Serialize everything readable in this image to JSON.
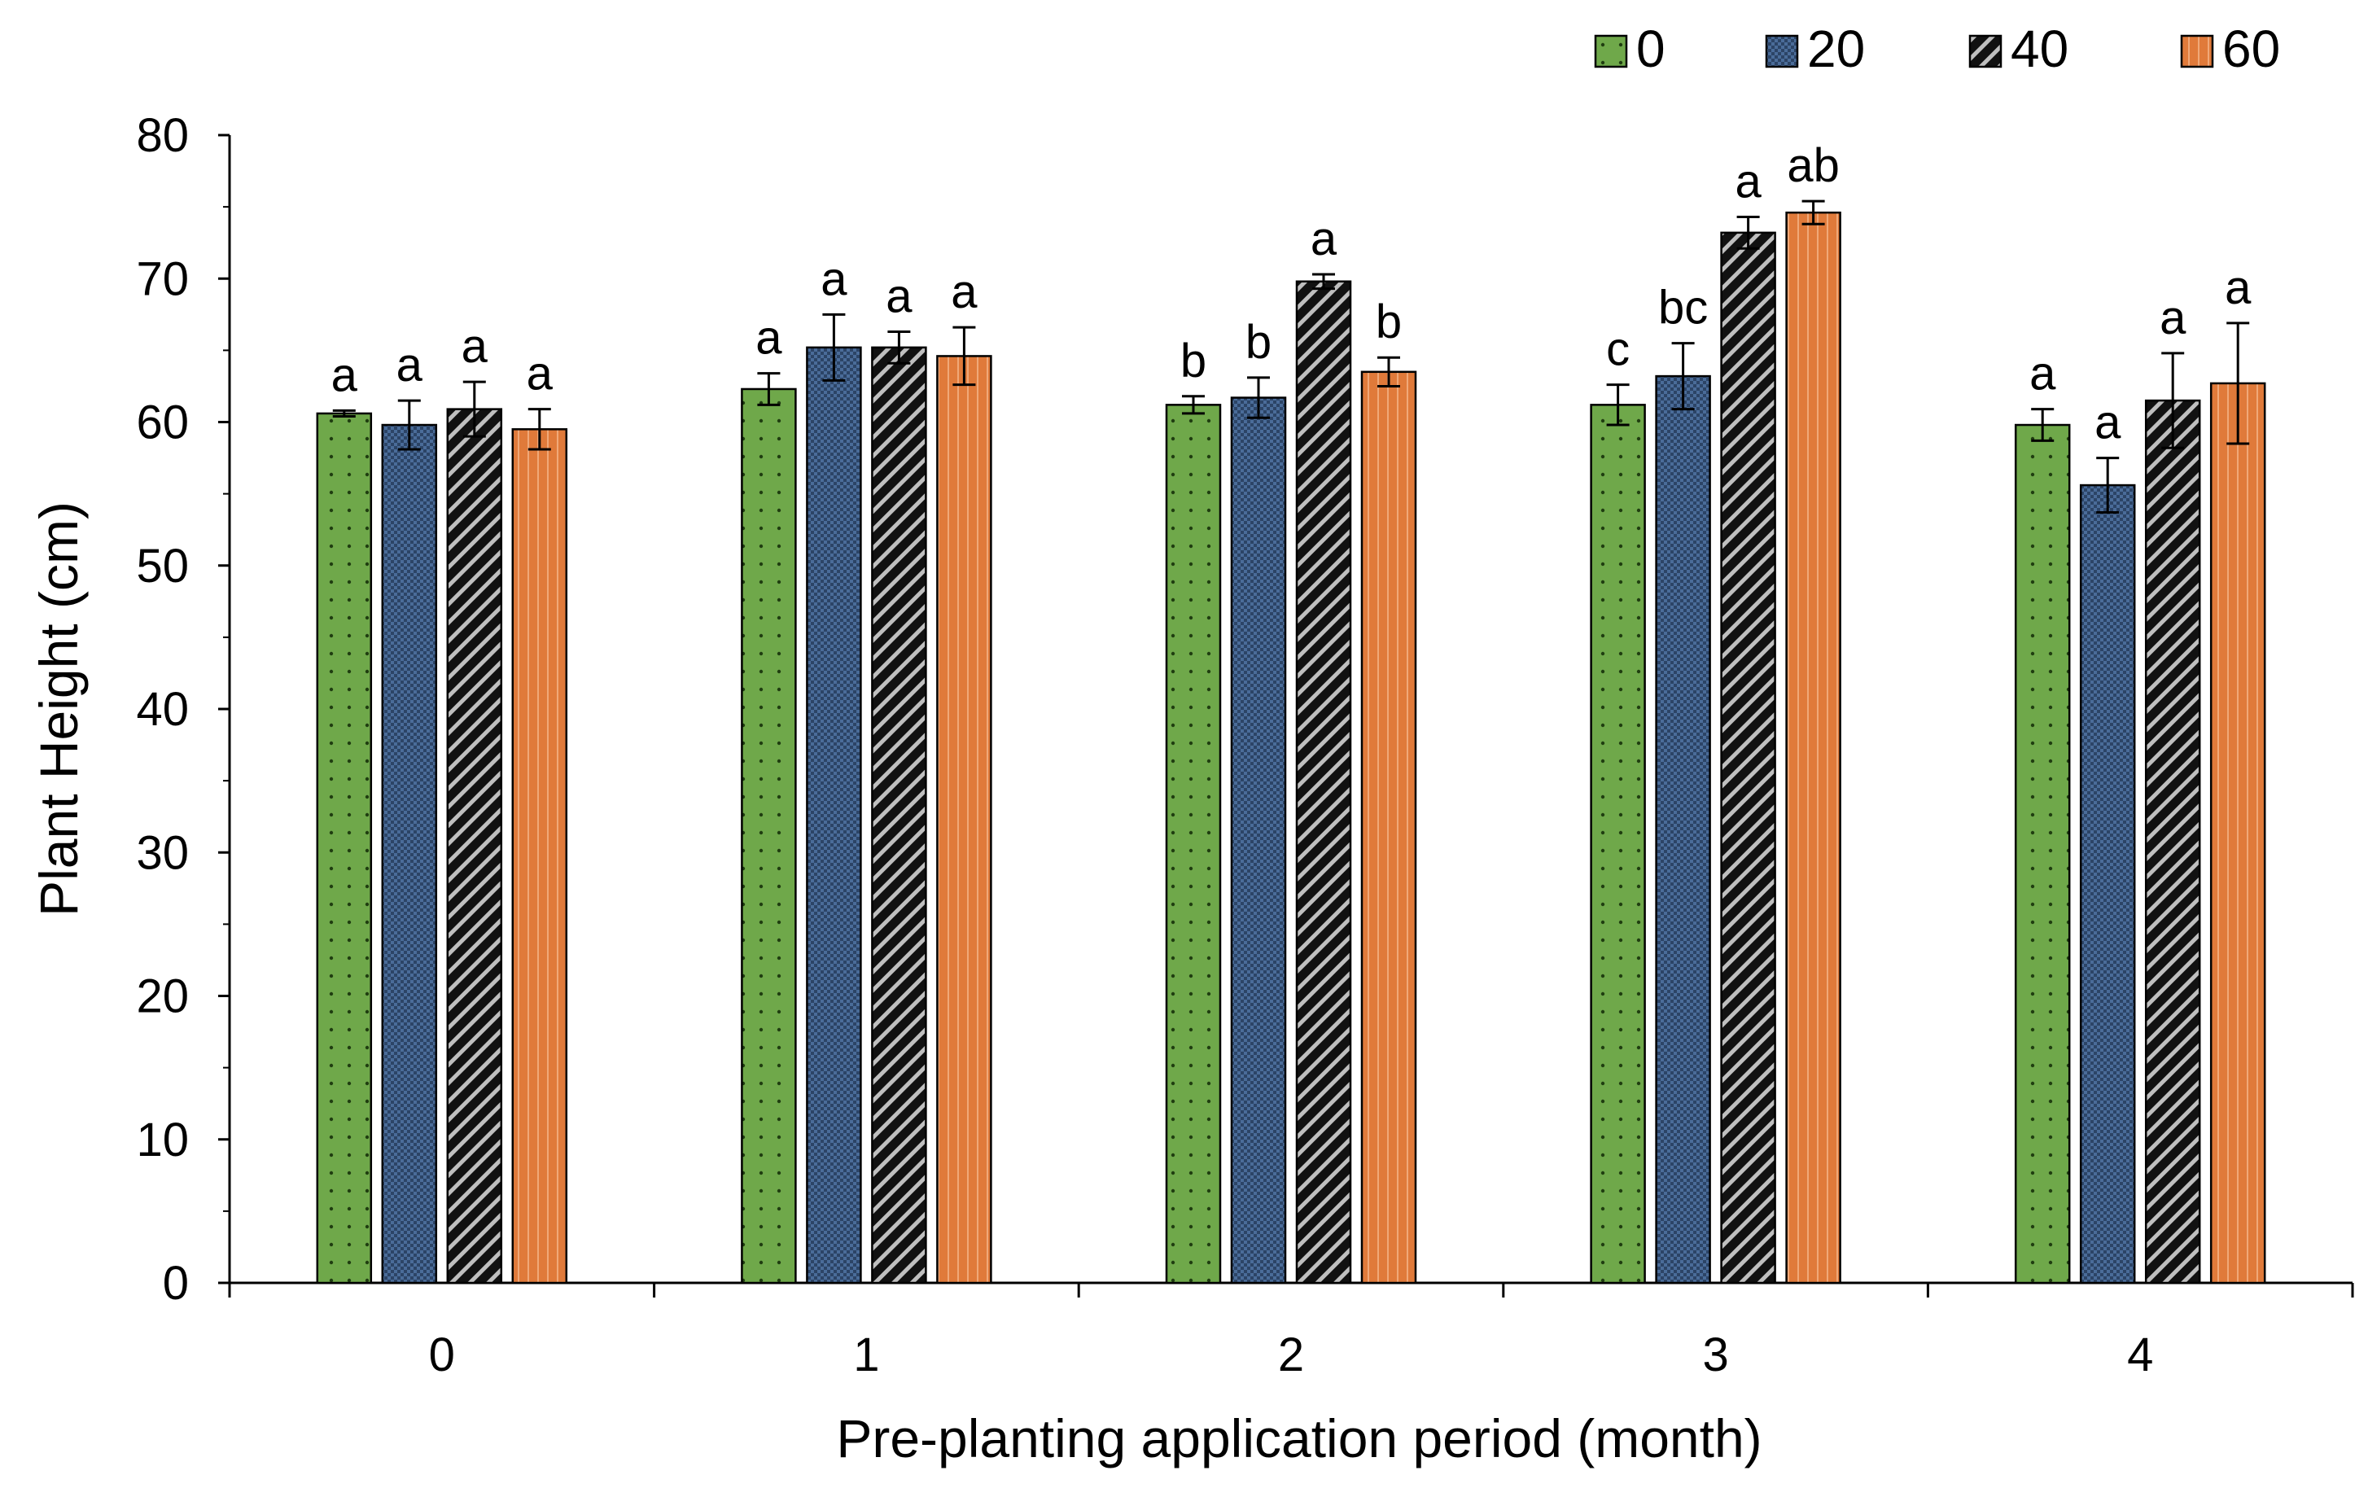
{
  "chart_data": {
    "type": "bar",
    "title": "",
    "xlabel": "Pre-planting application period (month)",
    "ylabel": "Plant Height (cm)",
    "ylim": [
      0,
      80
    ],
    "yticks": [
      0,
      10,
      20,
      30,
      40,
      50,
      60,
      70,
      80
    ],
    "categories": [
      "0",
      "1",
      "2",
      "3",
      "4"
    ],
    "legend_position": "top-right",
    "series": [
      {
        "name": "0",
        "color": "#6fa84a",
        "pattern": "dots",
        "values": [
          60.6,
          62.3,
          61.2,
          61.2,
          59.8
        ],
        "errors": [
          0.2,
          1.1,
          0.6,
          1.4,
          1.1
        ],
        "labels": [
          "a",
          "a",
          "b",
          "c",
          "a"
        ]
      },
      {
        "name": "20",
        "color": "#3f5f8a",
        "pattern": "checker",
        "values": [
          59.8,
          65.2,
          61.7,
          63.2,
          55.6
        ],
        "errors": [
          1.7,
          2.3,
          1.4,
          2.3,
          1.9
        ],
        "labels": [
          "a",
          "a",
          "b",
          "bc",
          "a"
        ]
      },
      {
        "name": "40",
        "color": "#1a1a1a",
        "pattern": "diagonal",
        "values": [
          60.9,
          65.2,
          69.8,
          73.2,
          61.5
        ],
        "errors": [
          1.9,
          1.1,
          0.5,
          1.1,
          3.3
        ],
        "labels": [
          "a",
          "a",
          "a",
          "a",
          "a"
        ]
      },
      {
        "name": "60",
        "color": "#e07a3a",
        "pattern": "vertical",
        "values": [
          59.5,
          64.6,
          63.5,
          74.6,
          62.7
        ],
        "errors": [
          1.4,
          2.0,
          1.0,
          0.8,
          4.2
        ],
        "labels": [
          "a",
          "a",
          "b",
          "ab",
          "a"
        ]
      }
    ]
  }
}
